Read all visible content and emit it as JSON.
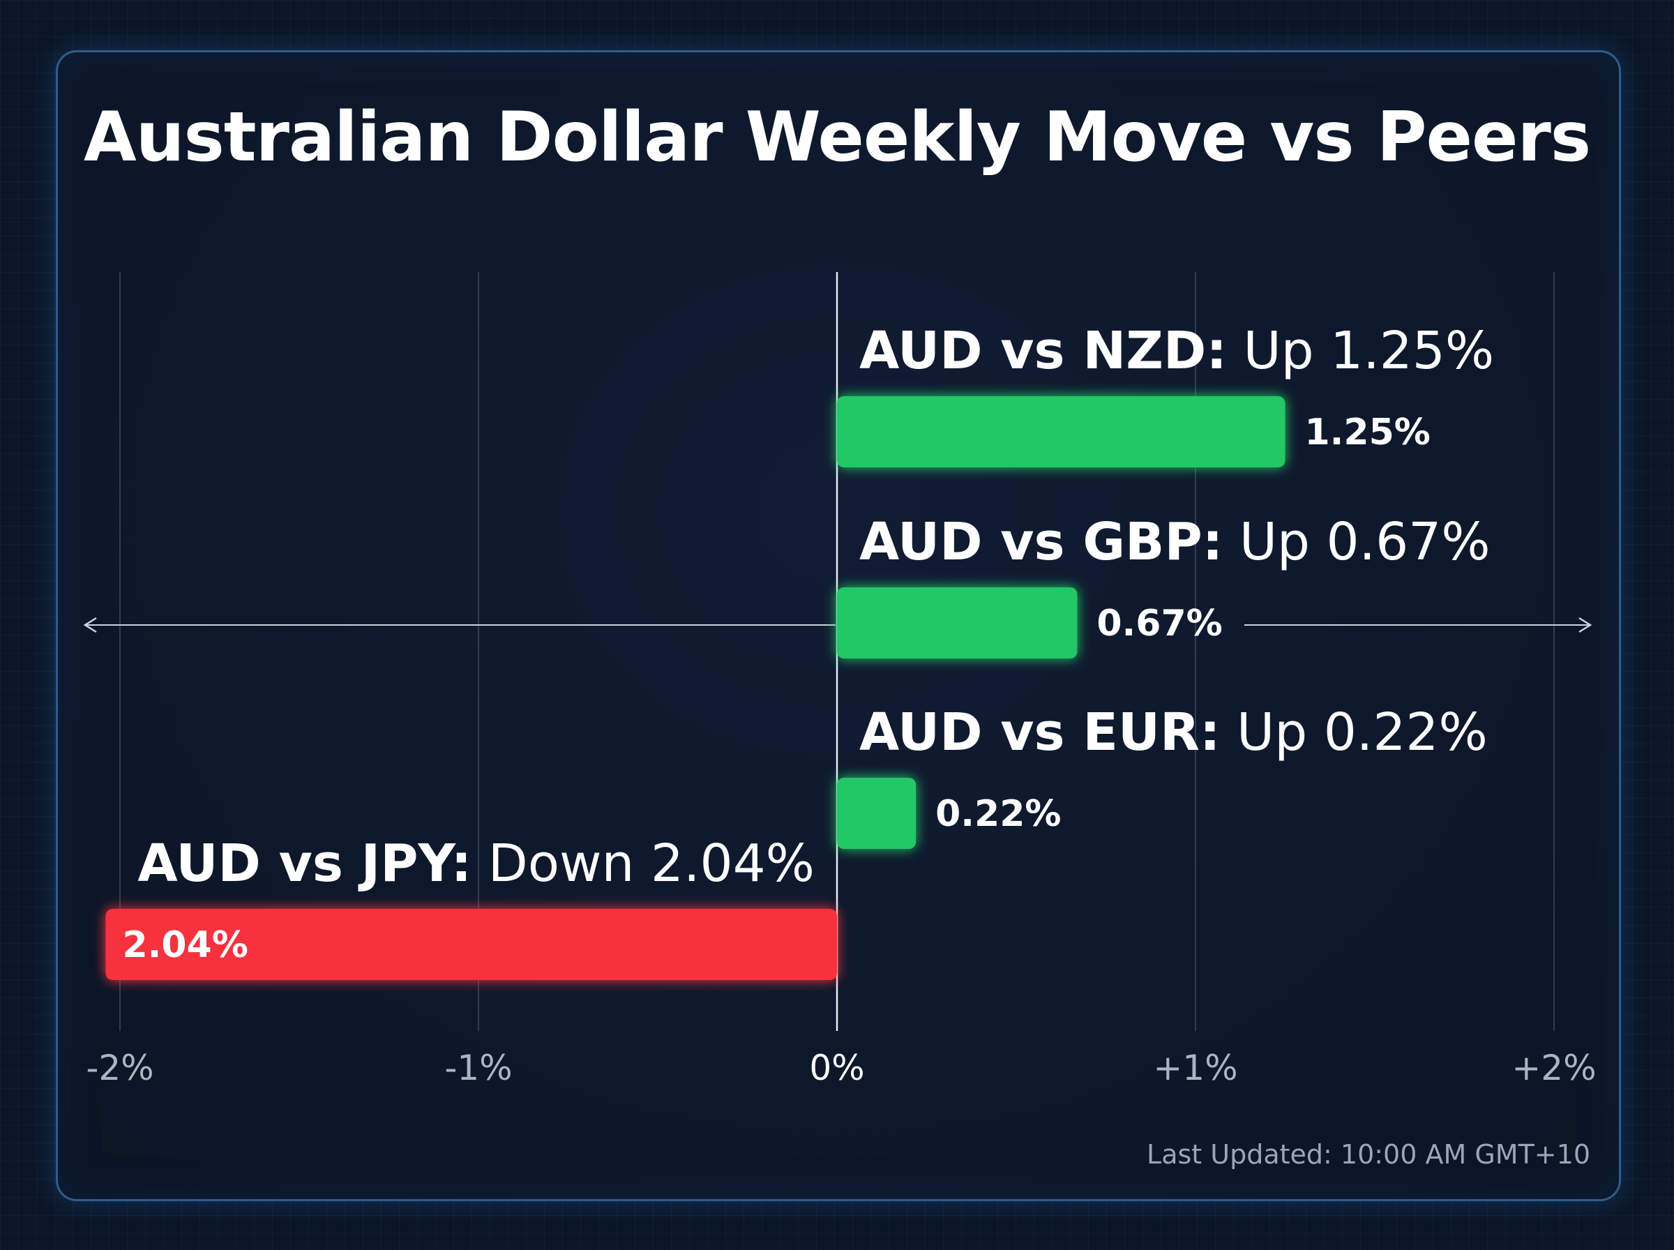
{
  "title": "Australian Dollar Weekly Move vs Peers",
  "footer": "Last Updated: 10:00 AM GMT+10",
  "colors": {
    "up": "#22c866",
    "down": "#f5323c",
    "grid": "#3a4a60",
    "zero_line": "#e8eef6",
    "tick_text": "#aab4c2",
    "zero_tick_text": "#ffffff",
    "text": "#ffffff"
  },
  "chart_data": {
    "type": "bar",
    "orientation": "horizontal",
    "xlim": [
      -2,
      2
    ],
    "x_ticks": [
      {
        "value": -2,
        "label": "-2%"
      },
      {
        "value": -1,
        "label": "-1%"
      },
      {
        "value": 0,
        "label": "0%"
      },
      {
        "value": 1,
        "label": "+1%"
      },
      {
        "value": 2,
        "label": "+2%"
      }
    ],
    "grid": true,
    "bars": [
      {
        "pair": "AUD vs NZD:",
        "direction": "Up 1.25%",
        "value": 1.25,
        "value_label": "1.25%"
      },
      {
        "pair": "AUD vs GBP:",
        "direction": "Up 0.67%",
        "value": 0.67,
        "value_label": "0.67%"
      },
      {
        "pair": "AUD vs EUR:",
        "direction": "Up 0.22%",
        "value": 0.22,
        "value_label": "0.22%"
      },
      {
        "pair": "AUD vs JPY:",
        "direction": "Down 2.04%",
        "value": -2.04,
        "value_label": "2.04%"
      }
    ]
  }
}
